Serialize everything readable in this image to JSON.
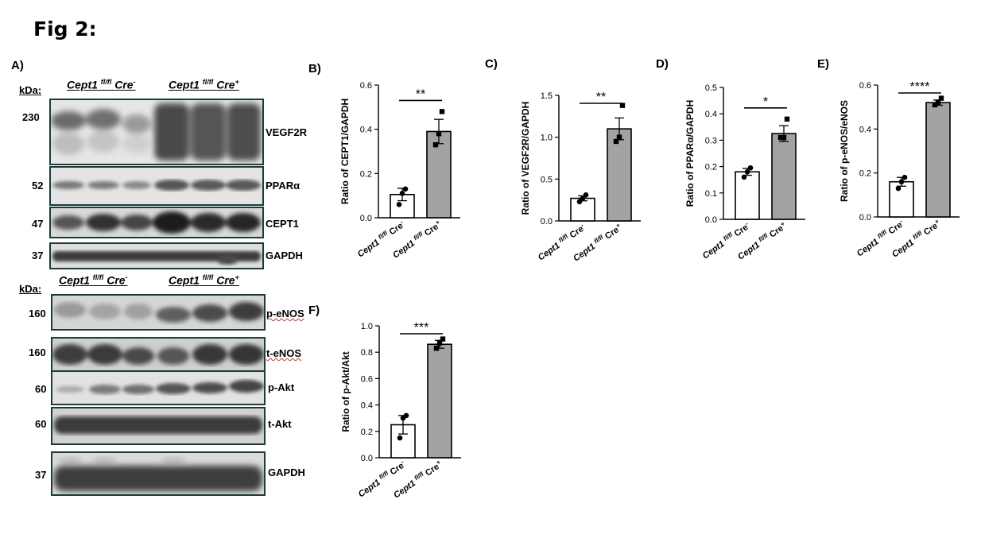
{
  "figure": {
    "title": "Fig 2:",
    "panel_letters": {
      "A": "A)",
      "B": "B)",
      "C": "C)",
      "D": "D)",
      "E": "E)",
      "F": "F)"
    },
    "blots": {
      "kda_label": "kDa:",
      "group_labels": {
        "minus": {
          "gene": "Cept1",
          "sup": "fl/fl",
          "cre": "Cre",
          "cre_sup": "-"
        },
        "plus": {
          "gene": "Cept1",
          "sup": "fl/fl",
          "cre": "Cre",
          "cre_sup": "+"
        }
      },
      "top_set": [
        {
          "protein": "VEGF2R",
          "kda": "230"
        },
        {
          "protein": "PPARα",
          "kda": "52"
        },
        {
          "protein": "CEPT1",
          "kda": "47"
        },
        {
          "protein": "GAPDH",
          "kda": "37"
        }
      ],
      "bottom_set": [
        {
          "protein": "p-eNOS",
          "kda": "160"
        },
        {
          "protein": "t-eNOS",
          "kda": "160"
        },
        {
          "protein": "p-Akt",
          "kda": "60"
        },
        {
          "protein": "t-Akt",
          "kda": "60"
        },
        {
          "protein": "GAPDH",
          "kda": "37"
        }
      ]
    }
  },
  "chart_data": [
    {
      "panel": "B",
      "type": "bar",
      "categories": [
        "Cept1 fl/fl Cre-",
        "Cept1 fl/fl Cre+"
      ],
      "values": [
        0.105,
        0.39
      ],
      "errors": [
        0.028,
        0.055
      ],
      "points": [
        [
          0.06,
          0.11,
          0.13
        ],
        [
          0.33,
          0.38,
          0.48
        ]
      ],
      "ylabel": "Ratio of CEPT1/GAPDH",
      "ylim": [
        0,
        0.6
      ],
      "yticks": [
        "0.0",
        "0.2",
        "0.4",
        "0.6"
      ],
      "significance": "**",
      "bar_colors": [
        "#ffffff",
        "#a3a3a6"
      ]
    },
    {
      "panel": "C",
      "type": "bar",
      "categories": [
        "Cept1 fl/fl Cre-",
        "Cept1 fl/fl Cre+"
      ],
      "values": [
        0.27,
        1.1
      ],
      "errors": [
        0.03,
        0.13
      ],
      "points": [
        [
          0.23,
          0.27,
          0.31
        ],
        [
          0.95,
          1.0,
          1.38
        ]
      ],
      "ylabel": "Ratio of VEGF2R/GAPDH",
      "ylim": [
        0,
        1.5
      ],
      "yticks": [
        "0.0",
        "0.5",
        "1.0",
        "1.5"
      ],
      "significance": "**",
      "bar_colors": [
        "#ffffff",
        "#a3a3a6"
      ]
    },
    {
      "panel": "D",
      "type": "bar",
      "categories": [
        "Cept1 fl/fl Cre-",
        "Cept1 fl/fl Cre+"
      ],
      "values": [
        0.18,
        0.325
      ],
      "errors": [
        0.013,
        0.03
      ],
      "points": [
        [
          0.16,
          0.18,
          0.195
        ],
        [
          0.31,
          0.31,
          0.38
        ]
      ],
      "ylabel": "Ratio of  PPARα/GAPDH",
      "ylim": [
        0,
        0.5
      ],
      "yticks": [
        "0.0",
        "0.1",
        "0.2",
        "0.3",
        "0.4",
        "0.5"
      ],
      "significance": "*",
      "bar_colors": [
        "#ffffff",
        "#a3a3a6"
      ]
    },
    {
      "panel": "E",
      "type": "bar",
      "categories": [
        "Cept1 fl/fl Cre-",
        "Cept1 fl/fl Cre+"
      ],
      "values": [
        0.16,
        0.52
      ],
      "errors": [
        0.02,
        0.012
      ],
      "points": [
        [
          0.13,
          0.16,
          0.18
        ],
        [
          0.51,
          0.52,
          0.54
        ]
      ],
      "ylabel": "Ratio of p-eNOS/eNOS",
      "ylim": [
        0,
        0.6
      ],
      "yticks": [
        "0.0",
        "0.2",
        "0.4",
        "0.6"
      ],
      "significance": "****",
      "bar_colors": [
        "#ffffff",
        "#a3a3a6"
      ]
    },
    {
      "panel": "F",
      "type": "bar",
      "categories": [
        "Cept1 fl/fl Cre-",
        "Cept1 fl/fl Cre+"
      ],
      "values": [
        0.25,
        0.86
      ],
      "errors": [
        0.07,
        0.03
      ],
      "points": [
        [
          0.15,
          0.3,
          0.32
        ],
        [
          0.83,
          0.87,
          0.9
        ]
      ],
      "ylabel": "Ratio of p-Akt/Akt",
      "ylim": [
        0,
        1.0
      ],
      "yticks": [
        "0.0",
        "0.2",
        "0.4",
        "0.6",
        "0.8",
        "1.0"
      ],
      "significance": "***",
      "bar_colors": [
        "#ffffff",
        "#a3a3a6"
      ]
    }
  ]
}
